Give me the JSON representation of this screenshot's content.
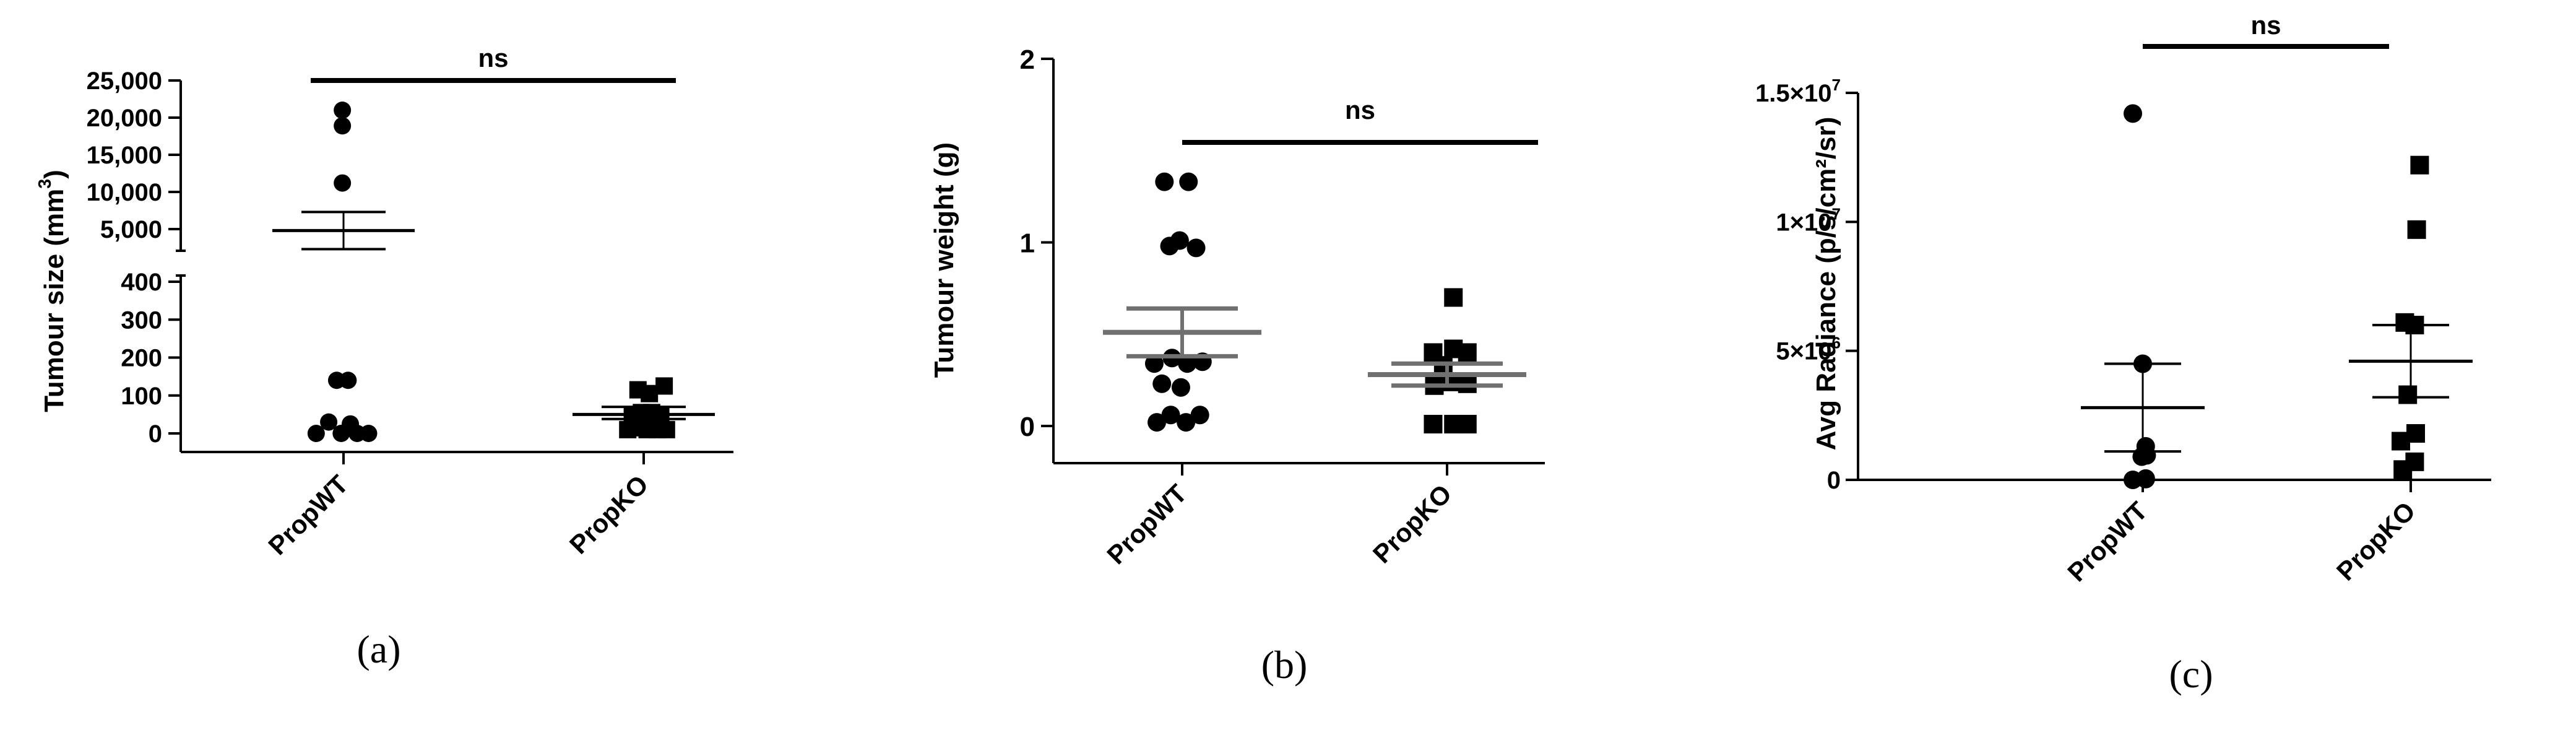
{
  "chart_data": [
    {
      "type": "scatter",
      "panel_label": "(a)",
      "categories": [
        "PropWT",
        "PropKO"
      ],
      "ylabel": "Tumour size (mm",
      "ylabel_sup": "3",
      "ylabel_close": ")",
      "axis_break": true,
      "ylim_lower": [
        0,
        400
      ],
      "ylim_upper": [
        0,
        25000
      ],
      "yticks_lower": [
        0,
        100,
        200,
        300,
        400
      ],
      "yticks_upper": [
        5000,
        10000,
        15000,
        20000,
        25000
      ],
      "ytick_labels_lower": [
        "0",
        "100",
        "200",
        "300",
        "400"
      ],
      "ytick_labels_upper": [
        "5,000",
        "10,000",
        "15,000",
        "20,000",
        "25,000"
      ],
      "significance": "ns",
      "series": [
        {
          "marker": "circle",
          "points": [
            [
              -0.24,
              0
            ],
            [
              -0.13,
              30
            ],
            [
              -0.06,
              140
            ],
            [
              0.04,
              140
            ],
            [
              0.06,
              25
            ],
            [
              -0.02,
              0
            ],
            [
              0.12,
              0
            ],
            [
              0.22,
              0
            ],
            [
              -0.01,
              11200
            ],
            [
              -0.01,
              18900
            ],
            [
              -0.01,
              21000
            ]
          ],
          "mean": 4800,
          "sem": [
            2300,
            7300
          ]
        },
        {
          "marker": "square",
          "points": [
            [
              -0.14,
              10
            ],
            [
              -0.06,
              15
            ],
            [
              0.03,
              10
            ],
            [
              0.12,
              10
            ],
            [
              0.2,
              10
            ],
            [
              -0.1,
              45
            ],
            [
              -0.02,
              55
            ],
            [
              0.07,
              55
            ],
            [
              0.15,
              50
            ],
            [
              -0.05,
              115
            ],
            [
              0.05,
              105
            ],
            [
              0.18,
              125
            ]
          ],
          "mean": 50,
          "sem": [
            38,
            70
          ]
        }
      ]
    },
    {
      "type": "scatter",
      "panel_label": "(b)",
      "categories": [
        "PropWT",
        "PropKO"
      ],
      "ylabel": "Tumour weight (g)",
      "ylim": [
        0,
        2
      ],
      "yticks": [
        0,
        1,
        2
      ],
      "significance": "ns",
      "series": [
        {
          "marker": "circle",
          "points": [
            [
              -0.14,
              1.33
            ],
            [
              0.05,
              1.33
            ],
            [
              -0.1,
              0.98
            ],
            [
              -0.02,
              1.01
            ],
            [
              0.11,
              0.97
            ],
            [
              -0.22,
              0.34
            ],
            [
              -0.08,
              0.37
            ],
            [
              0.04,
              0.34
            ],
            [
              0.16,
              0.35
            ],
            [
              -0.16,
              0.23
            ],
            [
              -0.01,
              0.21
            ],
            [
              -0.2,
              0.02
            ],
            [
              -0.09,
              0.06
            ],
            [
              0.03,
              0.02
            ],
            [
              0.14,
              0.06
            ]
          ],
          "mean": 0.51,
          "sem": [
            0.38,
            0.64
          ]
        },
        {
          "marker": "square",
          "points": [
            [
              0.05,
              0.7
            ],
            [
              -0.11,
              0.4
            ],
            [
              0.05,
              0.42
            ],
            [
              0.16,
              0.4
            ],
            [
              -0.03,
              0.33
            ],
            [
              -0.1,
              0.22
            ],
            [
              0.03,
              0.24
            ],
            [
              0.16,
              0.23
            ],
            [
              -0.11,
              0.01
            ],
            [
              0.05,
              0.01
            ],
            [
              0.16,
              0.01
            ]
          ],
          "mean": 0.28,
          "sem": [
            0.22,
            0.34
          ]
        }
      ]
    },
    {
      "type": "scatter",
      "panel_label": "(c)",
      "categories": [
        "PropWT",
        "PropKO"
      ],
      "ylabel": "Avg Radiance (p/s/cm²/sr)",
      "ylim": [
        0,
        15000000
      ],
      "yticks": [
        0,
        5000000,
        10000000,
        15000000
      ],
      "ytick_labels": [
        "0",
        "5×10",
        "1×10",
        "1.5×10"
      ],
      "ytick_exps": [
        "",
        "6",
        "7",
        "7"
      ],
      "significance": "ns",
      "series": [
        {
          "marker": "circle",
          "points": [
            [
              -0.1,
              14200000
            ],
            [
              0.0,
              4500000
            ],
            [
              0.03,
              1300000
            ],
            [
              0.04,
              950000
            ],
            [
              -0.1,
              0
            ],
            [
              0.03,
              50000
            ],
            [
              0.03,
              30000
            ],
            [
              -0.01,
              900000
            ]
          ],
          "mean": 2800000,
          "sem": [
            1100000,
            4500000
          ]
        },
        {
          "marker": "square",
          "points": [
            [
              0.09,
              12200000
            ],
            [
              0.06,
              9700000
            ],
            [
              -0.06,
              6100000
            ],
            [
              0.04,
              6000000
            ],
            [
              -0.03,
              3300000
            ],
            [
              0.05,
              1800000
            ],
            [
              -0.1,
              1500000
            ],
            [
              0.04,
              700000
            ],
            [
              -0.08,
              400000
            ]
          ],
          "mean": 4600000,
          "sem": [
            3200000,
            6000000
          ]
        }
      ]
    }
  ]
}
